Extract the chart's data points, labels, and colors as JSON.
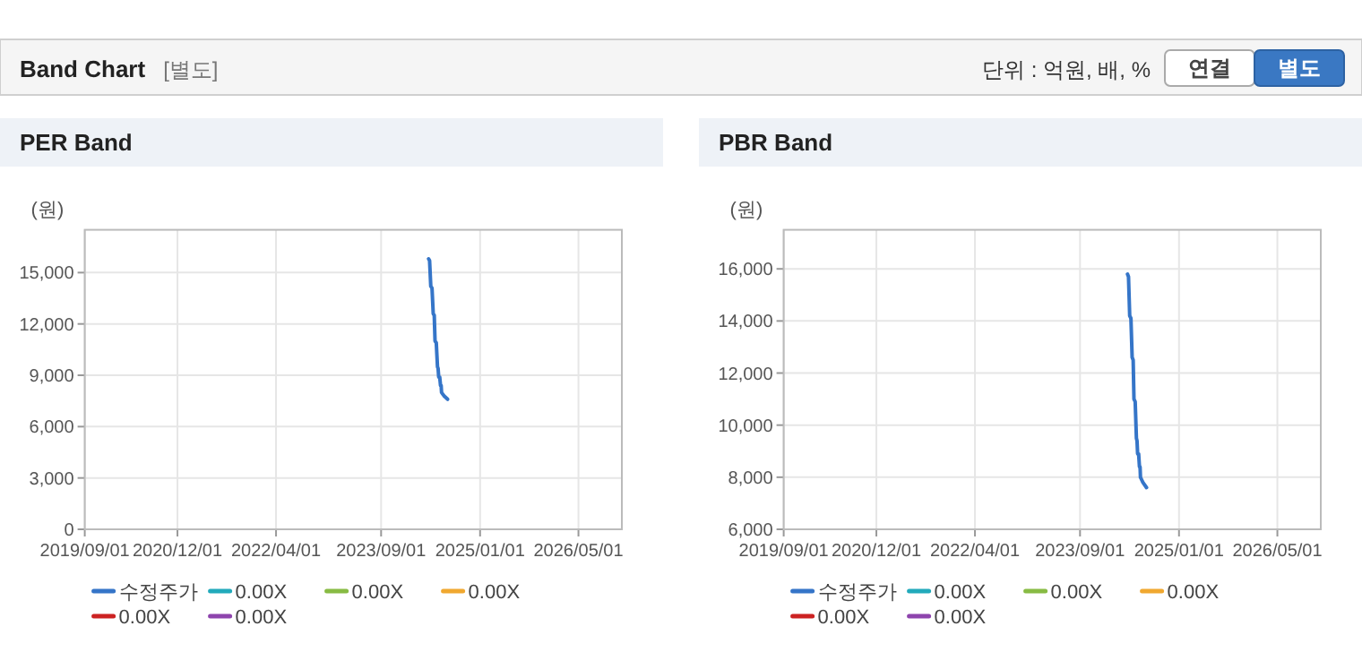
{
  "chart_data": [
    {
      "type": "other",
      "title": "Band Chart",
      "annotations": [
        "[별도]",
        "단위 : 억원, 배, %",
        "연결",
        "별도"
      ]
    },
    {
      "type": "line",
      "title": "PER Band",
      "ylabel": "(원)",
      "grid": true,
      "legend": "bottom",
      "line_style": "solid",
      "x": [
        "2024-04-22",
        "2024-04-27",
        "2024-05-03",
        "2024-05-09",
        "2024-05-15",
        "2024-05-20",
        "2024-05-24",
        "2024-05-30",
        "2024-06-05",
        "2024-06-08",
        "2024-06-11",
        "2024-06-16",
        "2024-06-20",
        "2024-06-23",
        "2024-06-25",
        "2024-07-01",
        "2024-07-07",
        "2024-07-25"
      ],
      "xlim": [
        "2019-09-01",
        "2026-12-01"
      ],
      "xticks": [
        {
          "value": "2019-09-01",
          "label": "2019/09/01"
        },
        {
          "value": "2020-12-01",
          "label": "2020/12/01"
        },
        {
          "value": "2022-04-01",
          "label": "2022/04/01"
        },
        {
          "value": "2023-09-01",
          "label": "2023/09/01"
        },
        {
          "value": "2025-01-01",
          "label": "2025/01/01"
        },
        {
          "value": "2026-05-01",
          "label": "2026/05/01"
        }
      ],
      "ylim": [
        0,
        17500
      ],
      "yticks": [
        0,
        {
          "value": 3000,
          "label": "3,000"
        },
        {
          "value": 6000,
          "label": "6,000"
        },
        {
          "value": 9000,
          "label": "9,000"
        },
        {
          "value": 12000,
          "label": "12,000"
        },
        {
          "value": 15000,
          "label": "15,000"
        }
      ],
      "series": [
        {
          "name": "수정주가",
          "color": "#3575c8",
          "values": [
            15800,
            15700,
            14200,
            14100,
            12600,
            12500,
            11000,
            10900,
            9500,
            9400,
            8900,
            8900,
            8400,
            8400,
            8000,
            7900,
            7800,
            7600
          ]
        },
        {
          "name": "0.00X",
          "color": "#22aabb",
          "values": [
            null,
            null,
            null,
            null,
            null,
            null,
            null,
            null,
            null,
            null,
            null,
            null,
            null,
            null,
            null,
            null,
            null,
            null
          ]
        },
        {
          "name": "0.00X",
          "color": "#88bb44",
          "values": [
            null,
            null,
            null,
            null,
            null,
            null,
            null,
            null,
            null,
            null,
            null,
            null,
            null,
            null,
            null,
            null,
            null,
            null
          ]
        },
        {
          "name": "0.00X",
          "color": "#f0a830",
          "values": [
            null,
            null,
            null,
            null,
            null,
            null,
            null,
            null,
            null,
            null,
            null,
            null,
            null,
            null,
            null,
            null,
            null,
            null
          ]
        },
        {
          "name": "0.00X",
          "color": "#cc2222",
          "values": [
            null,
            null,
            null,
            null,
            null,
            null,
            null,
            null,
            null,
            null,
            null,
            null,
            null,
            null,
            null,
            null,
            null,
            null
          ]
        },
        {
          "name": "0.00X",
          "color": "#8e44ad",
          "values": [
            null,
            null,
            null,
            null,
            null,
            null,
            null,
            null,
            null,
            null,
            null,
            null,
            null,
            null,
            null,
            null,
            null,
            null
          ]
        }
      ]
    },
    {
      "type": "line",
      "title": "PBR Band",
      "ylabel": "(원)",
      "grid": true,
      "legend": "bottom",
      "line_style": "solid",
      "x": [
        "2024-04-22",
        "2024-04-27",
        "2024-05-03",
        "2024-05-09",
        "2024-05-15",
        "2024-05-20",
        "2024-05-24",
        "2024-05-30",
        "2024-06-05",
        "2024-06-08",
        "2024-06-11",
        "2024-06-16",
        "2024-06-20",
        "2024-06-23",
        "2024-06-25",
        "2024-07-01",
        "2024-07-07",
        "2024-07-25"
      ],
      "xlim": [
        "2019-09-01",
        "2026-12-01"
      ],
      "xticks": [
        {
          "value": "2019-09-01",
          "label": "2019/09/01"
        },
        {
          "value": "2020-12-01",
          "label": "2020/12/01"
        },
        {
          "value": "2022-04-01",
          "label": "2022/04/01"
        },
        {
          "value": "2023-09-01",
          "label": "2023/09/01"
        },
        {
          "value": "2025-01-01",
          "label": "2025/01/01"
        },
        {
          "value": "2026-05-01",
          "label": "2026/05/01"
        }
      ],
      "ylim": [
        6000,
        17500
      ],
      "yticks": [
        {
          "value": 6000,
          "label": "6,000"
        },
        {
          "value": 8000,
          "label": "8,000"
        },
        {
          "value": 10000,
          "label": "10,000"
        },
        {
          "value": 12000,
          "label": "12,000"
        },
        {
          "value": 14000,
          "label": "14,000"
        },
        {
          "value": 16000,
          "label": "16,000"
        }
      ],
      "series": [
        {
          "name": "수정주가",
          "color": "#3575c8",
          "values": [
            15800,
            15700,
            14200,
            14100,
            12600,
            12500,
            11000,
            10900,
            9500,
            9400,
            8900,
            8900,
            8400,
            8400,
            8000,
            7900,
            7800,
            7600
          ]
        },
        {
          "name": "0.00X",
          "color": "#22aabb",
          "values": [
            null,
            null,
            null,
            null,
            null,
            null,
            null,
            null,
            null,
            null,
            null,
            null,
            null,
            null,
            null,
            null,
            null,
            null
          ]
        },
        {
          "name": "0.00X",
          "color": "#88bb44",
          "values": [
            null,
            null,
            null,
            null,
            null,
            null,
            null,
            null,
            null,
            null,
            null,
            null,
            null,
            null,
            null,
            null,
            null,
            null
          ]
        },
        {
          "name": "0.00X",
          "color": "#f0a830",
          "values": [
            null,
            null,
            null,
            null,
            null,
            null,
            null,
            null,
            null,
            null,
            null,
            null,
            null,
            null,
            null,
            null,
            null,
            null
          ]
        },
        {
          "name": "0.00X",
          "color": "#cc2222",
          "values": [
            null,
            null,
            null,
            null,
            null,
            null,
            null,
            null,
            null,
            null,
            null,
            null,
            null,
            null,
            null,
            null,
            null,
            null
          ]
        },
        {
          "name": "0.00X",
          "color": "#8e44ad",
          "values": [
            null,
            null,
            null,
            null,
            null,
            null,
            null,
            null,
            null,
            null,
            null,
            null,
            null,
            null,
            null,
            null,
            null,
            null
          ]
        }
      ]
    }
  ]
}
